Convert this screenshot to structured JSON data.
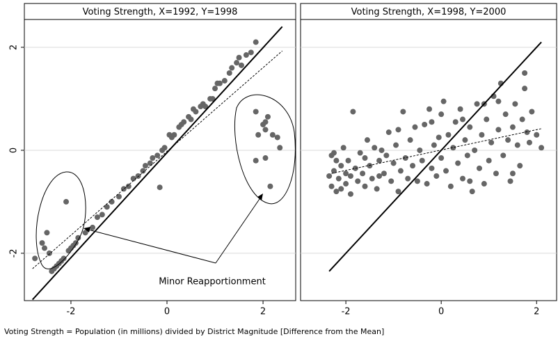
{
  "chart_data": [
    {
      "type": "scatter",
      "title": "Voting Strength, X=1992, Y=1998",
      "color": "#666666",
      "xlim": [
        -2.97,
        2.68
      ],
      "ylim": [
        -2.92,
        2.54
      ],
      "xticks": [
        -2,
        0,
        2
      ],
      "yticks": [
        -2,
        0,
        2
      ],
      "grid": true,
      "ytick_labels": true,
      "x": [
        -2.75,
        -2.6,
        -2.55,
        -2.5,
        -2.45,
        -2.4,
        -2.35,
        -2.3,
        -2.25,
        -2.2,
        -2.15,
        -2.1,
        -2.05,
        -2.0,
        -1.95,
        -1.9,
        -1.85,
        -1.7,
        -1.55,
        -1.45,
        -1.35,
        -1.25,
        -1.15,
        -1.0,
        -0.9,
        -0.8,
        -0.7,
        -0.6,
        -0.5,
        -0.45,
        -0.35,
        -0.3,
        -0.2,
        -0.1,
        -0.05,
        0.05,
        0.1,
        0.15,
        0.25,
        0.3,
        0.35,
        0.45,
        0.5,
        0.55,
        0.6,
        0.7,
        0.75,
        0.8,
        0.9,
        0.95,
        1.0,
        1.05,
        1.1,
        1.2,
        1.3,
        1.35,
        1.45,
        1.5,
        1.55,
        1.65,
        1.75,
        1.85,
        -0.15,
        1.85,
        2.0,
        2.05,
        2.1,
        1.9,
        2.2,
        2.3,
        1.85,
        2.05,
        2.15,
        2.05,
        2.35
      ],
      "y": [
        -2.1,
        -1.8,
        -1.9,
        -1.6,
        -2.0,
        -2.35,
        -2.3,
        -2.25,
        -2.2,
        -2.15,
        -2.1,
        -1.0,
        -1.95,
        -1.9,
        -1.85,
        -1.8,
        -1.7,
        -1.6,
        -1.5,
        -1.3,
        -1.25,
        -1.1,
        -1.0,
        -0.9,
        -0.75,
        -0.7,
        -0.55,
        -0.5,
        -0.4,
        -0.3,
        -0.25,
        -0.15,
        -0.1,
        0.0,
        0.05,
        0.3,
        0.25,
        0.3,
        0.45,
        0.5,
        0.55,
        0.65,
        0.6,
        0.8,
        0.75,
        0.85,
        0.9,
        0.85,
        1.0,
        1.0,
        1.2,
        1.3,
        1.3,
        1.35,
        1.5,
        1.6,
        1.7,
        1.8,
        1.65,
        1.85,
        1.9,
        2.1,
        -0.72,
        0.75,
        0.5,
        0.55,
        0.65,
        0.3,
        0.3,
        0.25,
        -0.2,
        -0.15,
        -0.7,
        0.4,
        0.05
      ],
      "lines": [
        {
          "style": "solid",
          "x": [
            -2.8,
            2.4
          ],
          "y": [
            -2.9,
            2.4
          ]
        },
        {
          "style": "dashed",
          "x": [
            -2.8,
            2.4
          ],
          "y": [
            -2.3,
            1.93
          ]
        }
      ],
      "annotation": "Minor Reapportionment"
    },
    {
      "type": "scatter",
      "title": "Voting Strength, X=1998, Y=2000",
      "color": "#666666",
      "xlim": [
        -2.95,
        2.42
      ],
      "ylim": [
        -2.92,
        2.54
      ],
      "xticks": [
        -2,
        0,
        2
      ],
      "yticks": [
        -2,
        0,
        2
      ],
      "grid": true,
      "ytick_labels": false,
      "x": [
        -2.35,
        -2.3,
        -2.3,
        -2.25,
        -2.2,
        -2.2,
        -2.15,
        -2.1,
        -2.1,
        -2.05,
        -2.0,
        -2.0,
        -1.95,
        -1.9,
        -1.85,
        -1.8,
        -1.75,
        -1.7,
        -1.65,
        -1.6,
        -1.55,
        -1.5,
        -1.45,
        -1.4,
        -1.35,
        -1.3,
        -1.25,
        -1.2,
        -1.15,
        -1.1,
        -1.05,
        -1.0,
        -0.95,
        -0.9,
        -0.85,
        -0.8,
        -0.75,
        -0.7,
        -0.65,
        -0.6,
        -0.55,
        -0.5,
        -0.45,
        -0.4,
        -0.35,
        -0.3,
        -0.25,
        -0.2,
        -0.15,
        -0.1,
        -0.05,
        0.0,
        0.05,
        0.1,
        0.15,
        0.2,
        0.25,
        0.3,
        0.35,
        0.4,
        0.45,
        0.5,
        0.55,
        0.6,
        0.65,
        0.7,
        0.75,
        0.8,
        0.85,
        0.9,
        0.95,
        1.0,
        1.05,
        1.1,
        1.15,
        1.2,
        1.25,
        1.3,
        1.35,
        1.4,
        1.45,
        1.5,
        1.55,
        1.6,
        1.65,
        1.7,
        1.75,
        1.8,
        1.85,
        1.9,
        2.0,
        2.1,
        -0.2,
        0.45,
        0.6,
        1.2,
        -2.25,
        -1.9,
        -1.6,
        -1.3,
        -0.9,
        0.9,
        1.5,
        1.75,
        0.0
      ],
      "y": [
        -0.5,
        -0.1,
        -0.7,
        -0.4,
        -0.8,
        -0.2,
        -0.55,
        -0.3,
        -0.75,
        0.05,
        -0.45,
        -0.65,
        -0.2,
        -0.85,
        0.75,
        -0.35,
        -0.6,
        -0.05,
        -0.45,
        -0.7,
        0.2,
        -0.3,
        -0.55,
        0.05,
        -0.75,
        -0.2,
        0.0,
        -0.45,
        -0.1,
        0.35,
        -0.6,
        -0.25,
        0.1,
        -0.8,
        -0.4,
        0.75,
        -0.15,
        -0.55,
        0.2,
        -0.3,
        0.45,
        -0.6,
        0.0,
        -0.2,
        0.5,
        -0.65,
        0.8,
        -0.35,
        0.1,
        -0.5,
        0.25,
        -0.15,
        0.95,
        -0.4,
        0.3,
        -0.7,
        0.05,
        0.55,
        -0.25,
        0.8,
        -0.55,
        0.2,
        -0.1,
        0.45,
        -0.8,
        0.0,
        0.9,
        -0.35,
        0.3,
        -0.65,
        0.6,
        -0.2,
        0.15,
        1.05,
        -0.45,
        0.4,
        1.3,
        -0.1,
        0.7,
        0.2,
        -0.6,
        0.45,
        0.9,
        0.1,
        -0.3,
        0.6,
        1.5,
        0.35,
        0.15,
        0.75,
        0.3,
        0.05,
        0.55,
        0.6,
        -0.6,
        0.95,
        -0.05,
        -0.5,
        -0.15,
        -0.5,
        0.4,
        0.9,
        -0.45,
        1.2,
        0.7
      ],
      "lines": [
        {
          "style": "solid",
          "x": [
            -2.35,
            2.1
          ],
          "y": [
            -2.35,
            2.1
          ]
        },
        {
          "style": "dashed",
          "x": [
            -2.3,
            2.1
          ],
          "y": [
            -0.45,
            0.42
          ]
        }
      ]
    }
  ],
  "note": "Voting Strength = Population (in millions) divided by District Magnitude [Difference from the Mean]"
}
